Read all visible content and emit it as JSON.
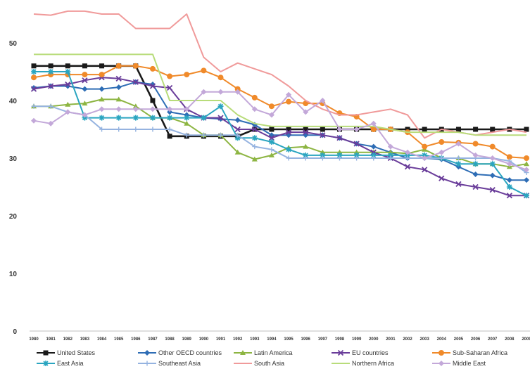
{
  "chart_data": {
    "type": "line",
    "title": "",
    "xlabel": "",
    "ylabel": "",
    "ylim": [
      0,
      55
    ],
    "yticks": [
      "0",
      "10",
      "20",
      "30",
      "40",
      "50"
    ],
    "grid": false,
    "legend_position": "bottom",
    "x": [
      "1980",
      "1981",
      "1982",
      "1983",
      "1984",
      "1985",
      "1986",
      "1987",
      "1988",
      "1989",
      "1990",
      "1991",
      "1992",
      "1993",
      "1994",
      "1995",
      "1996",
      "1997",
      "1998",
      "1999",
      "2000",
      "2001",
      "2002",
      "2003",
      "2004",
      "2005",
      "2006",
      "2007",
      "2008",
      "2009"
    ],
    "series": [
      {
        "name": "United States",
        "color": "#1a1a1a",
        "marker": "square",
        "values": [
          46,
          46,
          46,
          46,
          46,
          46,
          46,
          40,
          33.8,
          33.8,
          33.8,
          33.8,
          33.8,
          35,
          35,
          35,
          35,
          35,
          35,
          35,
          35,
          35,
          35,
          35,
          35,
          35,
          35,
          35,
          35,
          35
        ]
      },
      {
        "name": "Other OECD countries",
        "color": "#2e6db5",
        "marker": "diamond",
        "values": [
          42.2,
          42.5,
          42.5,
          42,
          42,
          42.3,
          43.2,
          42.8,
          38,
          37.5,
          37,
          36.8,
          36.6,
          35.8,
          34,
          34,
          34,
          34,
          33.5,
          32.5,
          32,
          31,
          30,
          30,
          29.8,
          28.5,
          27.2,
          27,
          26.2,
          26.2
        ]
      },
      {
        "name": "Latin America",
        "color": "#8db542",
        "marker": "triangle",
        "values": [
          39,
          39,
          39.3,
          39.5,
          40.2,
          40.2,
          39,
          37,
          37,
          36,
          34,
          34,
          31,
          29.8,
          30.5,
          31.8,
          32,
          31,
          31,
          31,
          31,
          31,
          30.8,
          31.5,
          30,
          30,
          29,
          29,
          28.5,
          29
        ]
      },
      {
        "name": "EU countries",
        "color": "#6a3d9a",
        "marker": "x",
        "values": [
          42,
          42.5,
          42.8,
          43.5,
          44,
          43.8,
          43.2,
          42.5,
          42.2,
          38.5,
          37,
          37,
          35,
          35,
          33.5,
          34.5,
          34.5,
          34,
          33.5,
          32.5,
          31,
          30,
          28.5,
          28,
          26.5,
          25.5,
          25,
          24.5,
          23.5,
          23.5
        ]
      },
      {
        "name": "Sub-Saharan Africa",
        "color": "#f08a2a",
        "marker": "circle",
        "values": [
          44,
          44.5,
          44.5,
          44.5,
          44.5,
          46,
          46,
          45.5,
          44.2,
          44.5,
          45.2,
          44,
          42,
          40.5,
          39,
          39.8,
          39.5,
          39.5,
          37.8,
          37.2,
          35,
          35,
          34.5,
          32,
          32.8,
          32.7,
          32.5,
          32,
          30.2,
          30
        ]
      },
      {
        "name": "East Asia",
        "color": "#2aa5c0",
        "marker": "star",
        "values": [
          45,
          45,
          45,
          37,
          37,
          37,
          37,
          37,
          37,
          37,
          37,
          39,
          33.5,
          33.5,
          32.8,
          31.5,
          30.5,
          30.5,
          30.5,
          30.5,
          30.5,
          30.5,
          30.5,
          30.5,
          30,
          29,
          29,
          29,
          25,
          23.5
        ]
      },
      {
        "name": "Southeast Asia",
        "color": "#95b3e0",
        "marker": "plus",
        "values": [
          39,
          39,
          38,
          37.5,
          35,
          35,
          35,
          35,
          35,
          34,
          34,
          34,
          34,
          32,
          31.5,
          30,
          30,
          30,
          30,
          30,
          30,
          30,
          30,
          30,
          30,
          30,
          30,
          30,
          29.5,
          27.5
        ]
      },
      {
        "name": "South Asia",
        "color": "#f09a9a",
        "marker": "none",
        "values": [
          55,
          54.8,
          55.5,
          55.5,
          55,
          55,
          52.5,
          52.5,
          52.5,
          55,
          47.5,
          45,
          46.5,
          45.5,
          44.5,
          42.5,
          40,
          38.5,
          37.5,
          37.5,
          38,
          38.5,
          37.5,
          33.5,
          35,
          34.5,
          34,
          34.5,
          35,
          34.5
        ]
      },
      {
        "name": "Northern Africa",
        "color": "#b8dc7a",
        "marker": "none",
        "values": [
          48,
          48,
          48,
          48,
          48,
          48,
          48,
          48,
          40,
          40,
          40,
          40,
          37.5,
          36,
          35.5,
          35.5,
          35.5,
          35.5,
          35.5,
          35.5,
          35.5,
          35,
          34.5,
          34.5,
          34.5,
          34.5,
          34,
          34,
          34,
          34
        ]
      },
      {
        "name": "Middle East",
        "color": "#c3a8d9",
        "marker": "diamond",
        "values": [
          36.5,
          36,
          38,
          37.5,
          38.5,
          38.5,
          38.5,
          38.5,
          38.5,
          38.5,
          41.5,
          41.5,
          41.5,
          38.5,
          37.5,
          41,
          38,
          40,
          35,
          35,
          36,
          32,
          31,
          30,
          31,
          32.5,
          30.5,
          30,
          29,
          28
        ]
      }
    ]
  }
}
